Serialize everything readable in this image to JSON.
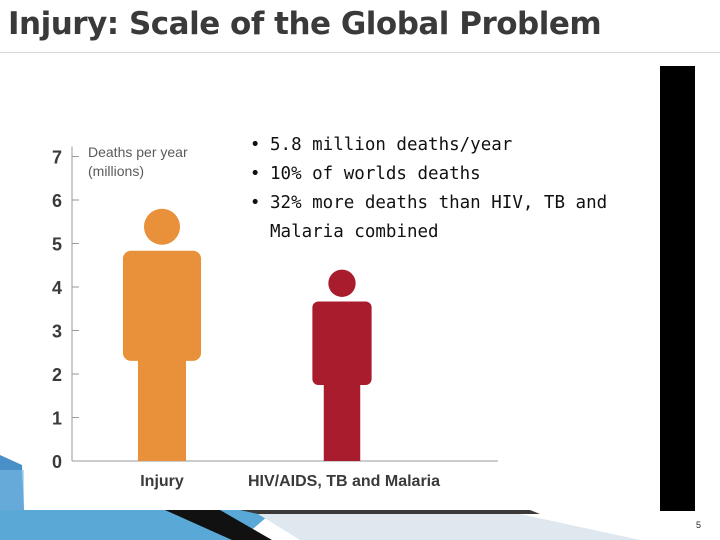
{
  "slide": {
    "title": "Injury: Scale of the Global Problem",
    "page_number": "5",
    "bullets": [
      "5.8 million deaths/year",
      "10% of worlds deaths",
      "32% more deaths than HIV, TB and Malaria combined"
    ]
  },
  "colors": {
    "injury": "#e8913a",
    "hiv_tb_malaria": "#a81c2e",
    "black_bar": "#000000",
    "accent_blue": "#4a90c8"
  },
  "chart_data": {
    "type": "bar",
    "title": "",
    "ylabel": "Deaths per year (millions)",
    "xlabel": "",
    "ylim": [
      0,
      7
    ],
    "yticks": [
      0,
      1,
      2,
      3,
      4,
      5,
      6,
      7
    ],
    "categories": [
      "Injury",
      "HIV/AIDS, TB and Malaria"
    ],
    "values": [
      5.8,
      4.4
    ],
    "bar_style": "human-figure pictogram",
    "grid": false
  }
}
